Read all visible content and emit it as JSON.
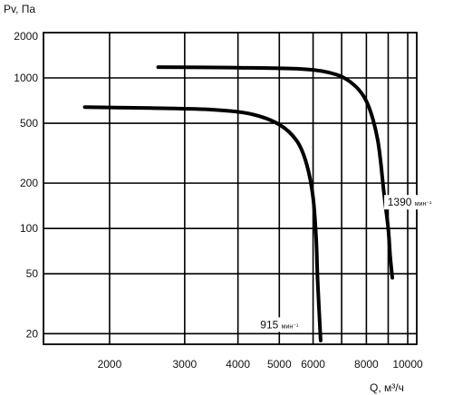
{
  "chart_data": {
    "type": "line",
    "ylabel": "Pv, Па",
    "xlabel": "Q, м³/ч",
    "xscale": "log",
    "yscale": "log",
    "xlim": [
      1400,
      10500
    ],
    "ylim": [
      17,
      2000
    ],
    "x_ticks": [
      2000,
      3000,
      4000,
      5000,
      6000,
      8000,
      10000
    ],
    "x_tick_labels": [
      "2000",
      "3000",
      "4000",
      "5000",
      "6000",
      "8000",
      "10000"
    ],
    "x_extra_gridlines": [
      7000,
      9000
    ],
    "y_ticks": [
      20,
      50,
      100,
      200,
      500,
      1000,
      2000
    ],
    "y_tick_labels": [
      "20",
      "50",
      "100",
      "200",
      "500",
      "1000",
      "2000"
    ],
    "grid": true,
    "series": [
      {
        "name": "915",
        "unit": "мин⁻¹",
        "points": [
          [
            1750,
            640
          ],
          [
            2500,
            630
          ],
          [
            3500,
            615
          ],
          [
            4300,
            575
          ],
          [
            5000,
            490
          ],
          [
            5500,
            380
          ],
          [
            5800,
            265
          ],
          [
            6000,
            160
          ],
          [
            6100,
            85
          ],
          [
            6150,
            45
          ],
          [
            6250,
            18
          ]
        ]
      },
      {
        "name": "1390",
        "unit": "мин⁻¹",
        "points": [
          [
            2600,
            1180
          ],
          [
            4000,
            1170
          ],
          [
            5500,
            1150
          ],
          [
            6500,
            1090
          ],
          [
            7300,
            950
          ],
          [
            8000,
            700
          ],
          [
            8500,
            390
          ],
          [
            8800,
            170
          ],
          [
            9000,
            100
          ],
          [
            9100,
            65
          ],
          [
            9200,
            47
          ]
        ]
      }
    ]
  }
}
